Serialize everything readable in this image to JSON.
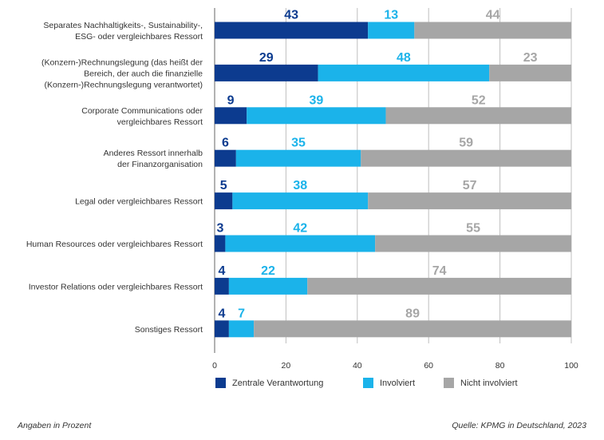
{
  "chart_data": {
    "type": "bar",
    "orientation": "horizontal",
    "stacked": true,
    "categories": [
      "Separates Nachhaltigkeits-, Sustainability-,\nESG- oder vergleichbares Ressort",
      "(Konzern-)Rechnungslegung (das heißt der\nBereich, der auch die finanzielle\n(Konzern-)Rechnungslegung verantwortet)",
      "Corporate Communications oder\nvergleichbares Ressort",
      "Anderes Ressort innerhalb\nder Finanzorganisation",
      "Legal oder vergleichbares Ressort",
      "Human Resources oder vergleichbares Ressort",
      "Investor Relations oder vergleichbares Ressort",
      "Sonstiges Ressort"
    ],
    "series": [
      {
        "name": "Zentrale Verantwortung",
        "color": "#0c3b8f",
        "values": [
          43,
          29,
          9,
          6,
          5,
          3,
          4,
          4
        ]
      },
      {
        "name": "Involviert",
        "color": "#1bb3ea",
        "values": [
          13,
          48,
          39,
          35,
          38,
          42,
          22,
          7
        ]
      },
      {
        "name": "Nicht involviert",
        "color": "#a6a6a6",
        "values": [
          44,
          23,
          52,
          59,
          57,
          55,
          74,
          89
        ]
      }
    ],
    "xlim": [
      0,
      100
    ],
    "xticks": [
      0,
      20,
      40,
      60,
      80,
      100
    ],
    "grid": true,
    "legend_position": "bottom"
  },
  "footer": {
    "note": "Angaben in Prozent",
    "source": "Quelle: KPMG in Deutschland, 2023"
  },
  "colors": {
    "text": "#333333",
    "grid": "#bfbfbf",
    "label_involved": "#1bb3ea",
    "label_not_involved": "#a6a6a6",
    "label_central": "#0c3b8f"
  }
}
